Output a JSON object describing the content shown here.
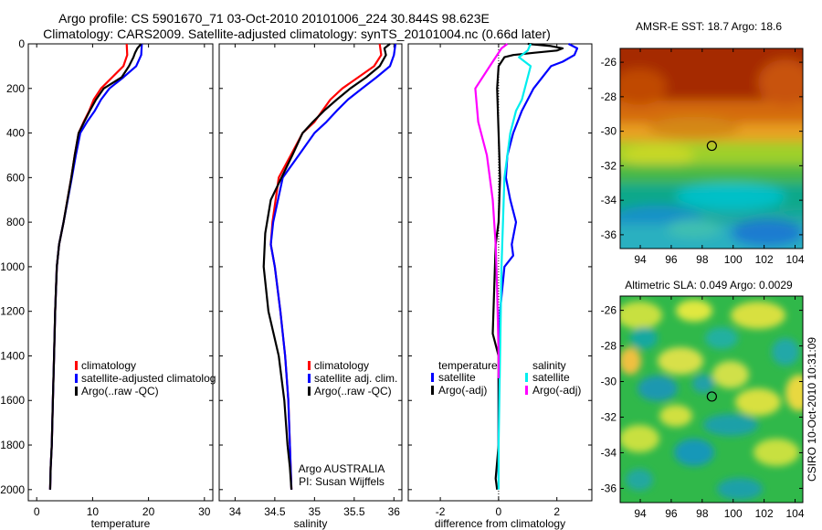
{
  "title": {
    "line1": "Argo profile: CS 5901670_71 03-Oct-2010 20101006_224 30.844S 98.623E",
    "line2": "Climatology: CARS2009. Satellite-adjusted climatology: synTS_20101004.nc (0.66d later)"
  },
  "side_text": "CSIRO 10-Oct-2010 10:31:09",
  "colors": {
    "climatology": "#ff0000",
    "satellite": "#0000ff",
    "argo": "#000000",
    "sal_satellite": "#00eeee",
    "sal_argo": "#ff00ff"
  },
  "chart_data": [
    {
      "type": "line",
      "id": "temperature",
      "xlabel": "temperature",
      "xlim": [
        -1.5,
        31.5
      ],
      "xticks": [
        0,
        10,
        20,
        30
      ],
      "ylim": [
        2050,
        0
      ],
      "yticks": [
        0,
        200,
        400,
        600,
        800,
        1000,
        1200,
        1400,
        1600,
        1800,
        2000
      ],
      "legend": [
        "climatology",
        "satellite-adjusted climatolog",
        "Argo(..raw -QC)"
      ],
      "series": [
        {
          "name": "climatology",
          "color": "climatology",
          "x": [
            16.1,
            16.2,
            15.5,
            13.5,
            11.5,
            10.2,
            9.4,
            8.4,
            7.5,
            6.8,
            6.2,
            4.8,
            4.0,
            3.6,
            3.3,
            3.1,
            2.9,
            2.7,
            2.5,
            2.4
          ],
          "y": [
            0,
            50,
            100,
            150,
            200,
            250,
            300,
            350,
            400,
            500,
            600,
            800,
            900,
            1000,
            1200,
            1400,
            1600,
            1800,
            1900,
            2000
          ]
        },
        {
          "name": "satellite-adjusted climatolog",
          "color": "satellite",
          "x": [
            18.8,
            18.7,
            17.8,
            15.5,
            13.0,
            11.5,
            10.4,
            9.0,
            7.8,
            7.0,
            6.3,
            4.8,
            4.0,
            3.6,
            3.3,
            3.1,
            2.9,
            2.7,
            2.5,
            2.4
          ],
          "y": [
            0,
            50,
            100,
            150,
            200,
            250,
            300,
            350,
            400,
            500,
            600,
            800,
            900,
            1000,
            1200,
            1400,
            1600,
            1800,
            1900,
            2000
          ]
        },
        {
          "name": "Argo(..raw -QC)",
          "color": "argo",
          "x": [
            18.7,
            18.0,
            17.6,
            17.3,
            16.5,
            15.2,
            12.0,
            10.6,
            9.5,
            8.5,
            7.5,
            6.8,
            6.2,
            4.8,
            4.0,
            3.6,
            3.3,
            3.1,
            2.9,
            2.7,
            2.5,
            2.4
          ],
          "y": [
            0,
            20,
            40,
            60,
            100,
            150,
            200,
            250,
            300,
            350,
            400,
            500,
            600,
            800,
            900,
            1000,
            1200,
            1400,
            1600,
            1800,
            1900,
            2000
          ]
        }
      ]
    },
    {
      "type": "line",
      "id": "salinity",
      "xlabel": "salinity",
      "xlim": [
        33.8,
        36.1
      ],
      "xticks": [
        34,
        34.5,
        35,
        35.5,
        36
      ],
      "xticklabels": [
        "34",
        "34.5",
        "35",
        "35.5",
        "36"
      ],
      "ylim": [
        2050,
        0
      ],
      "legend": [
        "climatology",
        "satellite adj. clim.",
        "Argo(..raw -QC)"
      ],
      "annotation": [
        "Argo AUSTRALIA",
        "PI: Susan Wijffels"
      ],
      "series": [
        {
          "name": "climatology",
          "color": "climatology",
          "x": [
            35.82,
            35.84,
            35.75,
            35.55,
            35.35,
            35.2,
            35.1,
            35.0,
            34.85,
            34.7,
            34.55,
            34.47,
            34.45,
            34.5,
            34.57,
            34.63,
            34.67,
            34.69,
            34.71
          ],
          "y": [
            0,
            50,
            100,
            150,
            200,
            250,
            300,
            350,
            400,
            500,
            600,
            800,
            900,
            1000,
            1200,
            1400,
            1600,
            1800,
            2000
          ]
        },
        {
          "name": "satellite adj. clim.",
          "color": "satellite",
          "x": [
            36.02,
            36.0,
            35.95,
            35.78,
            35.6,
            35.42,
            35.28,
            35.15,
            35.0,
            34.8,
            34.6,
            34.48,
            34.45,
            34.5,
            34.57,
            34.63,
            34.67,
            34.69,
            34.71
          ],
          "y": [
            0,
            50,
            100,
            150,
            200,
            250,
            300,
            350,
            400,
            500,
            600,
            800,
            900,
            1000,
            1200,
            1400,
            1600,
            1800,
            2000
          ]
        },
        {
          "name": "Argo(..raw -QC)",
          "color": "argo",
          "x": [
            35.95,
            35.88,
            35.9,
            35.82,
            35.65,
            35.45,
            35.28,
            35.12,
            34.98,
            34.85,
            34.72,
            34.45,
            34.38,
            34.36,
            34.42,
            34.55,
            34.62,
            34.66,
            34.69,
            34.71
          ],
          "y": [
            0,
            20,
            50,
            100,
            150,
            200,
            250,
            300,
            350,
            400,
            500,
            700,
            850,
            1000,
            1200,
            1400,
            1600,
            1800,
            1900,
            2000
          ]
        }
      ]
    },
    {
      "type": "line",
      "id": "difference",
      "xlabel": "difference from climatology",
      "xlim": [
        -3.1,
        3.2
      ],
      "xticks": [
        -2,
        0,
        2
      ],
      "ylim": [
        2050,
        0
      ],
      "zero_line": true,
      "legend_temperature": {
        "title": "temperature",
        "items": [
          "satellite",
          "Argo(-adj)"
        ]
      },
      "legend_salinity": {
        "title": "salinity",
        "items": [
          "satellite",
          "Argo(-adj)"
        ]
      },
      "series": [
        {
          "name": "temperature satellite",
          "color": "satellite",
          "x": [
            2.4,
            2.7,
            2.6,
            2.2,
            1.8,
            1.5,
            1.2,
            1.0,
            0.8,
            0.5,
            0.4,
            0.3,
            0.25,
            0.4,
            0.6,
            0.45,
            0.5,
            0.2,
            0.05,
            0.0,
            0.0
          ],
          "y": [
            0,
            20,
            50,
            80,
            100,
            150,
            200,
            250,
            300,
            400,
            450,
            500,
            600,
            700,
            800,
            900,
            950,
            1000,
            1200,
            1500,
            1950
          ]
        },
        {
          "name": "temperature Argo(-adj)",
          "color": "argo",
          "x": [
            1.0,
            1.8,
            2.2,
            2.0,
            1.2,
            0.5,
            0.2,
            0.1,
            0.0,
            -0.05,
            0.0,
            0.05,
            0.0,
            -0.1,
            -0.2,
            -0.1,
            0.0,
            0.0,
            -0.1,
            -0.05
          ],
          "y": [
            0,
            10,
            20,
            30,
            40,
            50,
            60,
            80,
            100,
            200,
            400,
            600,
            800,
            900,
            1300,
            1350,
            1400,
            1800,
            1950,
            2000
          ]
        },
        {
          "name": "salinity satellite",
          "color": "sal_satellite",
          "x": [
            1.1,
            1.0,
            0.7,
            1.1,
            0.9,
            0.8,
            0.6,
            0.4,
            0.3,
            0.2,
            0.15,
            0.1,
            0.05,
            0.0,
            0.0
          ],
          "y": [
            0,
            30,
            60,
            100,
            200,
            250,
            300,
            400,
            500,
            600,
            800,
            1000,
            1400,
            1800,
            2000
          ]
        },
        {
          "name": "salinity Argo(-adj)",
          "color": "sal_argo",
          "x": [
            0.3,
            0.1,
            -0.3,
            -0.8,
            -0.7,
            -0.4,
            -0.2,
            -0.1,
            -0.05,
            0.0,
            0.0
          ],
          "y": [
            0,
            20,
            100,
            200,
            350,
            500,
            700,
            900,
            1100,
            1400,
            1500
          ]
        }
      ]
    },
    {
      "type": "heatmap",
      "id": "sst-map",
      "title": "AMSR-E SST: 18.7 Argo: 18.6",
      "xlim": [
        92.7,
        104.5
      ],
      "ylim": [
        -36.8,
        -25.2
      ],
      "xticks": [
        94,
        96,
        98,
        100,
        102,
        104
      ],
      "yticks": [
        -26,
        -28,
        -30,
        -32,
        -34,
        -36
      ],
      "marker": {
        "lon": 98.623,
        "lat": -30.844
      }
    },
    {
      "type": "heatmap",
      "id": "sla-map",
      "title": "Altimetric SLA: 0.049 Argo: 0.0029",
      "xlim": [
        92.7,
        104.5
      ],
      "ylim": [
        -36.8,
        -25.2
      ],
      "xticks": [
        94,
        96,
        98,
        100,
        102,
        104
      ],
      "yticks": [
        -26,
        -28,
        -30,
        -32,
        -34,
        -36
      ],
      "marker": {
        "lon": 98.623,
        "lat": -30.844
      }
    }
  ]
}
